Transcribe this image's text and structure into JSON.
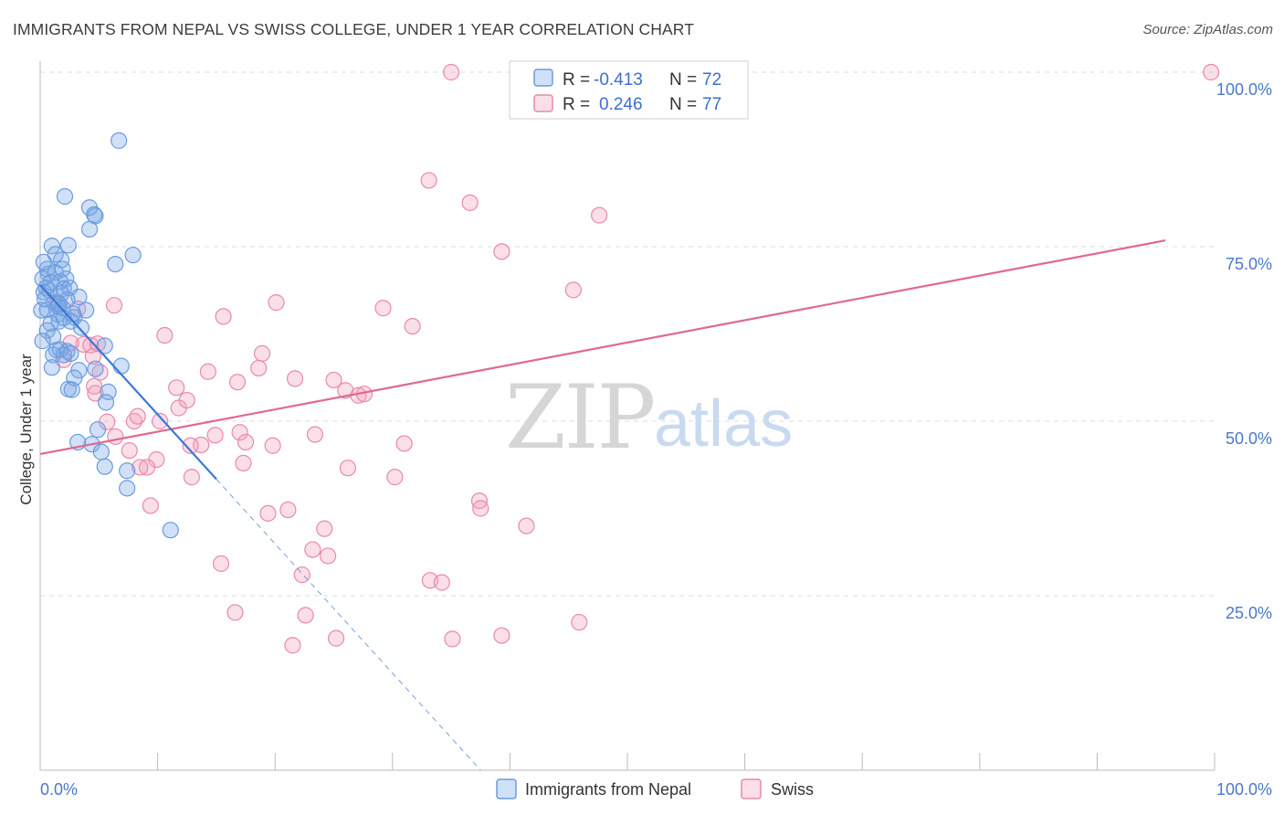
{
  "header": {
    "title": "IMMIGRANTS FROM NEPAL VS SWISS COLLEGE, UNDER 1 YEAR CORRELATION CHART",
    "source": "Source: ZipAtlas.com"
  },
  "watermark": {
    "part1": "ZIP",
    "part2": "atlas"
  },
  "colors": {
    "blue": "#6b9be0",
    "blue_fill": "rgba(120,165,230,0.35)",
    "blue_line": "#3a78d4",
    "pink": "#e88aaa",
    "pink_fill": "rgba(240,160,190,0.35)",
    "pink_line": "#e06890",
    "grid": "#dddddd",
    "tick_text": "#4a78c8"
  },
  "legend": {
    "row1": {
      "r_label": "R =",
      "r_value": "-0.413",
      "n_label": "N =",
      "n_value": "72"
    },
    "row2": {
      "r_label": "R =",
      "r_value": "0.246",
      "n_label": "N =",
      "n_value": "77"
    }
  },
  "bottom_legend": {
    "series1": "Immigrants from Nepal",
    "series2": "Swiss"
  },
  "chart_data": {
    "type": "scatter",
    "title": "IMMIGRANTS FROM NEPAL VS SWISS COLLEGE, UNDER 1 YEAR CORRELATION CHART",
    "xlabel": "",
    "ylabel": "College, Under 1 year",
    "xlim": [
      0,
      100
    ],
    "ylim": [
      0,
      102
    ],
    "x_tick_labels": [
      "0.0%",
      "100.0%"
    ],
    "y_ticks": [
      25,
      50,
      75,
      100
    ],
    "y_tick_labels": [
      "25.0%",
      "50.0%",
      "75.0%",
      "100.0%"
    ],
    "series": [
      {
        "name": "Immigrants from Nepal",
        "color": "blue",
        "R": -0.413,
        "N": 72,
        "trend": {
          "x0": 0,
          "y0": 69.5,
          "x_solid_end": 15,
          "x_dash_end": 37.5
        },
        "points": [
          [
            6.7,
            90.2
          ],
          [
            2.1,
            82.2
          ],
          [
            4.2,
            80.6
          ],
          [
            4.6,
            79.6
          ],
          [
            4.7,
            79.4
          ],
          [
            4.2,
            77.5
          ],
          [
            1.0,
            75.1
          ],
          [
            2.4,
            75.2
          ],
          [
            1.3,
            73.9
          ],
          [
            7.9,
            73.8
          ],
          [
            1.8,
            73.1
          ],
          [
            6.4,
            72.5
          ],
          [
            0.6,
            71.8
          ],
          [
            0.7,
            71.1
          ],
          [
            1.3,
            71.3
          ],
          [
            0.2,
            70.4
          ],
          [
            2.2,
            70.4
          ],
          [
            1.7,
            70.0
          ],
          [
            0.5,
            69.1
          ],
          [
            2.0,
            69.0
          ],
          [
            2.5,
            69.1
          ],
          [
            0.3,
            68.5
          ],
          [
            1.8,
            68.3
          ],
          [
            3.3,
            67.8
          ],
          [
            2.3,
            67.4
          ],
          [
            1.2,
            67.0
          ],
          [
            1.5,
            66.5
          ],
          [
            0.6,
            66.0
          ],
          [
            1.9,
            66.2
          ],
          [
            3.9,
            65.9
          ],
          [
            0.1,
            65.9
          ],
          [
            1.5,
            65.3
          ],
          [
            2.0,
            64.8
          ],
          [
            2.9,
            64.9
          ],
          [
            1.6,
            64.3
          ],
          [
            0.9,
            64.0
          ],
          [
            0.6,
            63.0
          ],
          [
            5.5,
            60.8
          ],
          [
            1.7,
            60.3
          ],
          [
            2.3,
            60.0
          ],
          [
            1.4,
            60.2
          ],
          [
            2.6,
            59.7
          ],
          [
            2.0,
            59.5
          ],
          [
            1.1,
            59.5
          ],
          [
            6.9,
            57.9
          ],
          [
            1.0,
            57.7
          ],
          [
            3.3,
            57.3
          ],
          [
            4.7,
            57.5
          ],
          [
            2.9,
            56.2
          ],
          [
            2.4,
            54.6
          ],
          [
            2.7,
            54.5
          ],
          [
            5.8,
            54.2
          ],
          [
            5.6,
            52.7
          ],
          [
            4.9,
            48.8
          ],
          [
            3.2,
            47.0
          ],
          [
            4.4,
            46.7
          ],
          [
            5.2,
            45.6
          ],
          [
            5.5,
            43.5
          ],
          [
            7.4,
            42.9
          ],
          [
            7.4,
            40.4
          ],
          [
            11.1,
            34.4
          ],
          [
            0.3,
            72.8
          ],
          [
            0.8,
            68.7
          ],
          [
            1.6,
            66.8
          ],
          [
            0.4,
            67.5
          ],
          [
            2.8,
            65.4
          ],
          [
            1.1,
            62.1
          ],
          [
            0.2,
            61.5
          ],
          [
            3.5,
            63.4
          ],
          [
            1.9,
            71.8
          ],
          [
            0.9,
            69.9
          ],
          [
            2.6,
            64.3
          ]
        ]
      },
      {
        "name": "Swiss",
        "color": "pink",
        "R": 0.246,
        "N": 77,
        "trend": {
          "x0": 0,
          "y0": 45.3,
          "x1": 95.8,
          "y1": 75.9
        },
        "points": [
          [
            35.0,
            100.0
          ],
          [
            99.7,
            100.0
          ],
          [
            33.1,
            84.5
          ],
          [
            36.6,
            81.3
          ],
          [
            47.6,
            79.5
          ],
          [
            39.3,
            74.3
          ],
          [
            45.4,
            68.8
          ],
          [
            20.1,
            67.0
          ],
          [
            29.2,
            66.2
          ],
          [
            15.6,
            65.0
          ],
          [
            31.7,
            63.6
          ],
          [
            10.6,
            62.3
          ],
          [
            3.7,
            61.0
          ],
          [
            4.3,
            60.9
          ],
          [
            18.9,
            59.7
          ],
          [
            4.5,
            59.3
          ],
          [
            18.6,
            57.6
          ],
          [
            14.3,
            57.1
          ],
          [
            21.7,
            56.1
          ],
          [
            25.0,
            55.9
          ],
          [
            4.6,
            55.0
          ],
          [
            11.6,
            54.8
          ],
          [
            26.0,
            54.4
          ],
          [
            27.1,
            53.7
          ],
          [
            27.6,
            53.9
          ],
          [
            4.7,
            54.0
          ],
          [
            11.8,
            51.9
          ],
          [
            5.7,
            49.9
          ],
          [
            8.0,
            50.0
          ],
          [
            10.2,
            50.0
          ],
          [
            17.0,
            48.4
          ],
          [
            14.9,
            48.0
          ],
          [
            6.4,
            47.8
          ],
          [
            17.5,
            47.0
          ],
          [
            19.8,
            46.5
          ],
          [
            13.7,
            46.6
          ],
          [
            12.8,
            46.5
          ],
          [
            31.0,
            46.8
          ],
          [
            7.6,
            45.8
          ],
          [
            9.9,
            44.5
          ],
          [
            17.3,
            44.0
          ],
          [
            9.1,
            43.4
          ],
          [
            8.5,
            43.4
          ],
          [
            26.2,
            43.3
          ],
          [
            12.9,
            42.0
          ],
          [
            30.2,
            42.0
          ],
          [
            37.4,
            38.6
          ],
          [
            9.4,
            37.9
          ],
          [
            37.5,
            37.5
          ],
          [
            21.1,
            37.3
          ],
          [
            19.4,
            36.8
          ],
          [
            41.4,
            35.0
          ],
          [
            24.2,
            34.6
          ],
          [
            23.2,
            31.6
          ],
          [
            24.5,
            30.7
          ],
          [
            15.4,
            29.6
          ],
          [
            22.3,
            28.0
          ],
          [
            33.2,
            27.2
          ],
          [
            34.2,
            26.9
          ],
          [
            16.6,
            22.6
          ],
          [
            45.9,
            21.2
          ],
          [
            22.6,
            22.2
          ],
          [
            39.3,
            19.3
          ],
          [
            35.1,
            18.8
          ],
          [
            25.2,
            18.9
          ],
          [
            21.5,
            17.9
          ],
          [
            3.2,
            66.1
          ],
          [
            6.3,
            66.6
          ],
          [
            1.4,
            66.9
          ],
          [
            2.0,
            58.8
          ],
          [
            5.1,
            57.0
          ],
          [
            12.5,
            53.0
          ],
          [
            23.4,
            48.1
          ],
          [
            4.9,
            61.1
          ],
          [
            2.6,
            61.2
          ],
          [
            16.8,
            55.6
          ],
          [
            8.3,
            50.7
          ]
        ]
      }
    ]
  }
}
